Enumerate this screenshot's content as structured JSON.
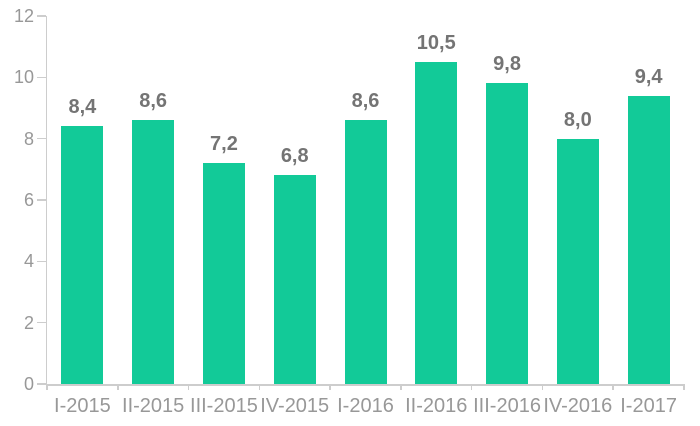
{
  "chart": {
    "background_color": "#ffffff",
    "bar_color": "#12ca98",
    "axis_color": "#cdcdcd",
    "axis_label_color": "#989898",
    "value_label_color": "#747474"
  },
  "chart_data": {
    "type": "bar",
    "title": "",
    "xlabel": "",
    "ylabel": "",
    "categories": [
      "I-2015",
      "II-2015",
      "III-2015",
      "IV-2015",
      "I-2016",
      "II-2016",
      "III-2016",
      "IV-2016",
      "I-2017"
    ],
    "values": [
      8.4,
      8.6,
      7.2,
      6.8,
      8.6,
      10.5,
      9.8,
      8.0,
      9.4
    ],
    "value_labels": [
      "8,4",
      "8,6",
      "7,2",
      "6,8",
      "8,6",
      "10,5",
      "9,8",
      "8,0",
      "9,4"
    ],
    "decimal_separator": ",",
    "ylim": [
      0,
      12
    ],
    "yticks": [
      0,
      2,
      4,
      6,
      8,
      10,
      12
    ],
    "ytick_labels": [
      "0",
      "2",
      "4",
      "6",
      "8",
      "10",
      "12"
    ],
    "grid": false,
    "legend": false,
    "bar_labels_position": "above"
  }
}
